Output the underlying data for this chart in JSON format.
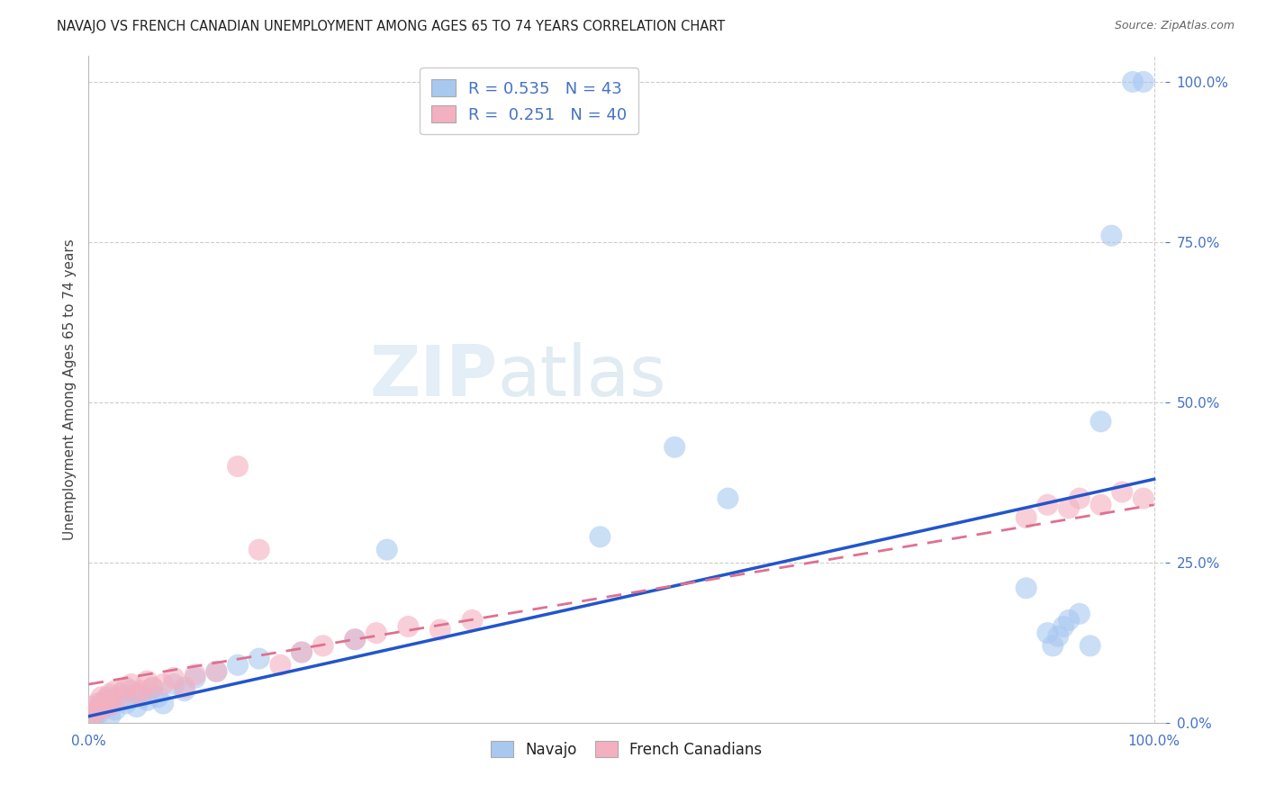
{
  "title": "NAVAJO VS FRENCH CANADIAN UNEMPLOYMENT AMONG AGES 65 TO 74 YEARS CORRELATION CHART",
  "source": "Source: ZipAtlas.com",
  "ylabel": "Unemployment Among Ages 65 to 74 years",
  "navajo_R": 0.535,
  "navajo_N": 43,
  "french_R": 0.251,
  "french_N": 40,
  "navajo_color": "#A8C8F0",
  "french_color": "#F4B0C0",
  "navajo_line_color": "#2255CC",
  "french_line_color": "#E07090",
  "watermark_zip": "ZIP",
  "watermark_atlas": "atlas",
  "navajo_points": [
    [
      0.3,
      0.5
    ],
    [
      0.5,
      1.0
    ],
    [
      0.7,
      2.0
    ],
    [
      1.0,
      1.5
    ],
    [
      1.2,
      3.0
    ],
    [
      1.5,
      2.5
    ],
    [
      1.8,
      4.0
    ],
    [
      2.0,
      1.0
    ],
    [
      2.2,
      3.5
    ],
    [
      2.5,
      2.0
    ],
    [
      3.0,
      4.5
    ],
    [
      3.5,
      3.0
    ],
    [
      4.0,
      5.0
    ],
    [
      4.5,
      2.5
    ],
    [
      5.0,
      4.0
    ],
    [
      5.5,
      3.5
    ],
    [
      6.0,
      5.5
    ],
    [
      6.5,
      4.0
    ],
    [
      7.0,
      3.0
    ],
    [
      8.0,
      6.0
    ],
    [
      9.0,
      5.0
    ],
    [
      10.0,
      7.0
    ],
    [
      12.0,
      8.0
    ],
    [
      14.0,
      9.0
    ],
    [
      16.0,
      10.0
    ],
    [
      20.0,
      11.0
    ],
    [
      25.0,
      13.0
    ],
    [
      28.0,
      27.0
    ],
    [
      48.0,
      29.0
    ],
    [
      55.0,
      43.0
    ],
    [
      60.0,
      35.0
    ],
    [
      88.0,
      21.0
    ],
    [
      90.0,
      14.0
    ],
    [
      90.5,
      12.0
    ],
    [
      91.0,
      13.5
    ],
    [
      91.5,
      15.0
    ],
    [
      92.0,
      16.0
    ],
    [
      93.0,
      17.0
    ],
    [
      94.0,
      12.0
    ],
    [
      95.0,
      47.0
    ],
    [
      96.0,
      76.0
    ],
    [
      98.0,
      100.0
    ],
    [
      99.0,
      100.0
    ]
  ],
  "french_points": [
    [
      0.2,
      1.0
    ],
    [
      0.4,
      2.5
    ],
    [
      0.6,
      1.5
    ],
    [
      0.8,
      3.0
    ],
    [
      1.0,
      2.0
    ],
    [
      1.2,
      4.0
    ],
    [
      1.5,
      3.5
    ],
    [
      1.8,
      2.5
    ],
    [
      2.0,
      4.5
    ],
    [
      2.2,
      3.0
    ],
    [
      2.5,
      5.0
    ],
    [
      3.0,
      4.0
    ],
    [
      3.5,
      5.5
    ],
    [
      4.0,
      6.0
    ],
    [
      4.5,
      4.5
    ],
    [
      5.0,
      5.0
    ],
    [
      5.5,
      6.5
    ],
    [
      6.0,
      5.5
    ],
    [
      7.0,
      6.0
    ],
    [
      8.0,
      7.0
    ],
    [
      9.0,
      5.5
    ],
    [
      10.0,
      7.5
    ],
    [
      12.0,
      8.0
    ],
    [
      14.0,
      40.0
    ],
    [
      16.0,
      27.0
    ],
    [
      18.0,
      9.0
    ],
    [
      20.0,
      11.0
    ],
    [
      22.0,
      12.0
    ],
    [
      25.0,
      13.0
    ],
    [
      27.0,
      14.0
    ],
    [
      30.0,
      15.0
    ],
    [
      33.0,
      14.5
    ],
    [
      36.0,
      16.0
    ],
    [
      88.0,
      32.0
    ],
    [
      90.0,
      34.0
    ],
    [
      92.0,
      33.5
    ],
    [
      93.0,
      35.0
    ],
    [
      95.0,
      34.0
    ],
    [
      97.0,
      36.0
    ],
    [
      99.0,
      35.0
    ]
  ],
  "xtick_positions": [
    0.0,
    100.0
  ],
  "xtick_labels": [
    "0.0%",
    "100.0%"
  ],
  "ytick_positions": [
    0.0,
    25.0,
    50.0,
    75.0,
    100.0
  ],
  "ytick_labels": [
    "0.0%",
    "25.0%",
    "50.0%",
    "75.0%",
    "100.0%"
  ],
  "grid_color": "#cccccc",
  "background_color": "#ffffff",
  "title_color": "#222222",
  "axis_label_color": "#444444",
  "tick_color": "#4472C4",
  "legend_navajo": "Navajo",
  "legend_french": "French Canadians"
}
